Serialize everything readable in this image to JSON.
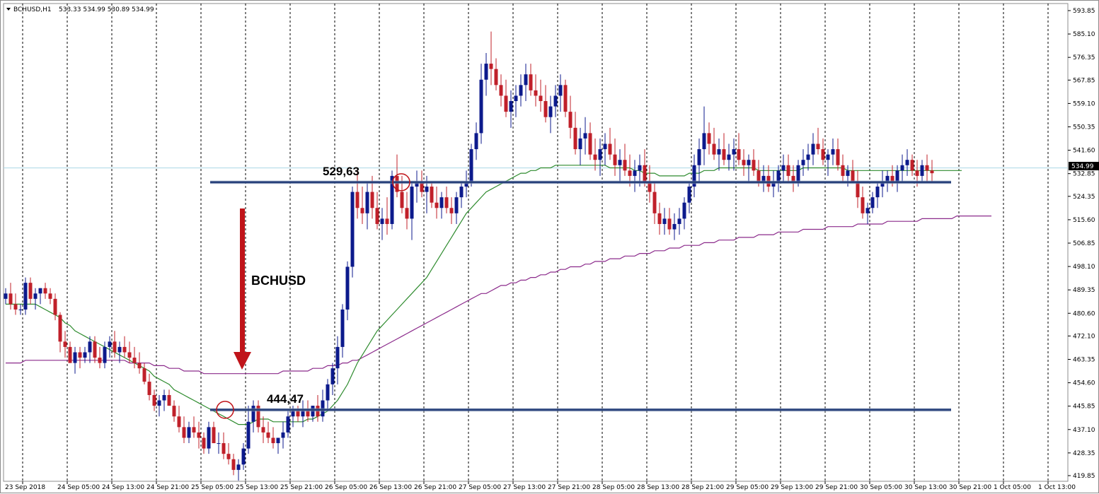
{
  "header": {
    "symbol": "BCHUSD,H1",
    "ohlc": "533.33 534.99 530.89 534.99"
  },
  "colors": {
    "bull": "#0c1a8c",
    "bear": "#c0202a",
    "ma_fast": "#2e8b2e",
    "ma_slow": "#8b2a8b",
    "level_line": "#27407a",
    "arrow": "#c0141a",
    "grid": "#000000",
    "price_tag_bg": "#000000"
  },
  "current_price_tag": "534.99",
  "chart_data": {
    "type": "candlestick",
    "title": "BCHUSD,H1",
    "ylim": [
      419.85,
      596.0
    ],
    "y_ticks": [
      "593.85",
      "585.10",
      "576.35",
      "567.85",
      "559.10",
      "550.35",
      "541.60",
      "532.85",
      "524.35",
      "515.60",
      "506.85",
      "498.10",
      "489.35",
      "480.60",
      "472.10",
      "463.35",
      "454.60",
      "445.85",
      "437.10",
      "428.35",
      "419.85"
    ],
    "x_tick_labels": [
      "23 Sep 2018",
      "24 Sep 05:00",
      "24 Sep 13:00",
      "24 Sep 21:00",
      "25 Sep 05:00",
      "25 Sep 13:00",
      "25 Sep 21:00",
      "26 Sep 05:00",
      "26 Sep 13:00",
      "26 Sep 21:00",
      "27 Sep 05:00",
      "27 Sep 13:00",
      "27 Sep 21:00",
      "28 Sep 05:00",
      "28 Sep 13:00",
      "28 Sep 21:00",
      "29 Sep 05:00",
      "29 Sep 13:00",
      "29 Sep 21:00",
      "30 Sep 05:00",
      "30 Sep 13:00",
      "30 Sep 21:00",
      "1 Oct 05:00",
      "1 Oct 13:00"
    ],
    "x_tick_bar_index": [
      0,
      9,
      18,
      27,
      36,
      45,
      54,
      63,
      72,
      81,
      90,
      99,
      108,
      117,
      126,
      135,
      144,
      153,
      162,
      171,
      180,
      189,
      198,
      207
    ],
    "ohlc": [
      [
        486,
        490,
        484,
        488
      ],
      [
        488,
        492,
        482,
        484
      ],
      [
        484,
        488,
        480,
        482
      ],
      [
        482,
        484,
        480,
        482
      ],
      [
        482,
        494,
        480,
        492
      ],
      [
        492,
        494,
        484,
        486
      ],
      [
        486,
        490,
        482,
        488
      ],
      [
        488,
        490,
        484,
        490
      ],
      [
        490,
        492,
        486,
        488
      ],
      [
        488,
        490,
        484,
        486
      ],
      [
        486,
        488,
        478,
        480
      ],
      [
        480,
        481,
        466,
        470
      ],
      [
        470,
        474,
        464,
        468
      ],
      [
        468,
        470,
        462,
        462
      ],
      [
        462,
        468,
        458,
        466
      ],
      [
        466,
        468,
        460,
        464
      ],
      [
        464,
        468,
        462,
        466
      ],
      [
        466,
        472,
        462,
        470
      ],
      [
        470,
        472,
        462,
        464
      ],
      [
        464,
        468,
        460,
        462
      ],
      [
        462,
        470,
        460,
        468
      ],
      [
        468,
        472,
        464,
        470
      ],
      [
        470,
        474,
        464,
        466
      ],
      [
        466,
        470,
        462,
        468
      ],
      [
        468,
        472,
        464,
        466
      ],
      [
        466,
        470,
        462,
        464
      ],
      [
        464,
        468,
        460,
        462
      ],
      [
        462,
        466,
        458,
        460
      ],
      [
        460,
        462,
        454,
        455
      ],
      [
        455,
        458,
        448,
        450
      ],
      [
        450,
        452,
        444,
        446
      ],
      [
        446,
        450,
        442,
        448
      ],
      [
        448,
        452,
        444,
        450
      ],
      [
        450,
        452,
        446,
        446
      ],
      [
        446,
        448,
        440,
        442
      ],
      [
        442,
        446,
        436,
        438
      ],
      [
        438,
        442,
        432,
        434
      ],
      [
        434,
        440,
        432,
        438
      ],
      [
        438,
        442,
        434,
        436
      ],
      [
        436,
        440,
        430,
        434
      ],
      [
        434,
        436,
        428,
        430
      ],
      [
        430,
        440,
        428,
        438
      ],
      [
        438,
        440,
        432,
        432
      ],
      [
        432,
        436,
        428,
        432
      ],
      [
        432,
        436,
        426,
        428
      ],
      [
        428,
        432,
        424,
        426
      ],
      [
        426,
        428,
        420,
        422
      ],
      [
        422,
        426,
        418,
        424
      ],
      [
        424,
        432,
        422,
        430
      ],
      [
        430,
        446,
        428,
        440
      ],
      [
        440,
        448,
        436,
        446
      ],
      [
        446,
        448,
        436,
        438
      ],
      [
        438,
        442,
        432,
        436
      ],
      [
        436,
        440,
        432,
        434
      ],
      [
        434,
        438,
        430,
        432
      ],
      [
        432,
        434,
        428,
        434
      ],
      [
        434,
        440,
        430,
        436
      ],
      [
        436,
        444,
        434,
        442
      ],
      [
        442,
        446,
        438,
        444
      ],
      [
        444,
        446,
        440,
        442
      ],
      [
        442,
        448,
        438,
        444
      ],
      [
        444,
        448,
        440,
        442
      ],
      [
        442,
        446,
        440,
        446
      ],
      [
        446,
        450,
        440,
        442
      ],
      [
        442,
        452,
        440,
        448
      ],
      [
        448,
        456,
        444,
        454
      ],
      [
        454,
        462,
        450,
        460
      ],
      [
        460,
        472,
        454,
        468
      ],
      [
        468,
        484,
        464,
        482
      ],
      [
        482,
        500,
        478,
        498
      ],
      [
        498,
        528,
        494,
        526
      ],
      [
        526,
        534,
        516,
        520
      ],
      [
        520,
        528,
        514,
        518
      ],
      [
        518,
        530,
        512,
        526
      ],
      [
        526,
        532,
        516,
        520
      ],
      [
        520,
        526,
        512,
        514
      ],
      [
        514,
        520,
        508,
        516
      ],
      [
        516,
        524,
        510,
        514
      ],
      [
        514,
        534,
        512,
        532
      ],
      [
        532,
        540,
        524,
        526
      ],
      [
        526,
        532,
        518,
        520
      ],
      [
        520,
        526,
        512,
        516
      ],
      [
        516,
        530,
        508,
        528
      ],
      [
        528,
        534,
        522,
        530
      ],
      [
        530,
        534,
        524,
        526
      ],
      [
        526,
        532,
        518,
        528
      ],
      [
        528,
        530,
        520,
        522
      ],
      [
        522,
        528,
        516,
        520
      ],
      [
        520,
        526,
        516,
        524
      ],
      [
        524,
        528,
        518,
        520
      ],
      [
        520,
        524,
        514,
        518
      ],
      [
        518,
        526,
        514,
        524
      ],
      [
        524,
        530,
        520,
        528
      ],
      [
        528,
        534,
        524,
        530
      ],
      [
        530,
        544,
        528,
        542
      ],
      [
        542,
        552,
        538,
        548
      ],
      [
        548,
        574,
        544,
        568
      ],
      [
        568,
        578,
        562,
        574
      ],
      [
        574,
        586,
        566,
        572
      ],
      [
        572,
        576,
        564,
        566
      ],
      [
        566,
        570,
        558,
        562
      ],
      [
        562,
        568,
        554,
        556
      ],
      [
        556,
        564,
        550,
        560
      ],
      [
        560,
        566,
        554,
        562
      ],
      [
        562,
        570,
        558,
        566
      ],
      [
        566,
        574,
        560,
        570
      ],
      [
        570,
        574,
        562,
        564
      ],
      [
        564,
        570,
        558,
        562
      ],
      [
        562,
        568,
        556,
        560
      ],
      [
        560,
        566,
        552,
        554
      ],
      [
        554,
        562,
        548,
        558
      ],
      [
        558,
        566,
        554,
        562
      ],
      [
        562,
        570,
        556,
        566
      ],
      [
        566,
        568,
        554,
        556
      ],
      [
        556,
        562,
        546,
        550
      ],
      [
        550,
        556,
        540,
        542
      ],
      [
        542,
        550,
        536,
        546
      ],
      [
        546,
        554,
        540,
        548
      ],
      [
        548,
        552,
        538,
        540
      ],
      [
        540,
        546,
        534,
        538
      ],
      [
        538,
        546,
        532,
        542
      ],
      [
        542,
        548,
        536,
        544
      ],
      [
        544,
        550,
        538,
        540
      ],
      [
        540,
        546,
        532,
        536
      ],
      [
        536,
        542,
        530,
        538
      ],
      [
        538,
        544,
        532,
        534
      ],
      [
        534,
        540,
        528,
        532
      ],
      [
        532,
        538,
        526,
        534
      ],
      [
        534,
        540,
        528,
        536
      ],
      [
        536,
        542,
        528,
        530
      ],
      [
        530,
        536,
        522,
        526
      ],
      [
        526,
        530,
        514,
        518
      ],
      [
        518,
        522,
        510,
        514
      ],
      [
        514,
        520,
        510,
        516
      ],
      [
        516,
        520,
        510,
        512
      ],
      [
        512,
        518,
        508,
        514
      ],
      [
        514,
        520,
        510,
        516
      ],
      [
        516,
        524,
        512,
        522
      ],
      [
        522,
        530,
        518,
        528
      ],
      [
        528,
        540,
        524,
        536
      ],
      [
        536,
        546,
        530,
        542
      ],
      [
        542,
        558,
        536,
        548
      ],
      [
        548,
        552,
        540,
        544
      ],
      [
        544,
        550,
        538,
        540
      ],
      [
        540,
        546,
        534,
        542
      ],
      [
        542,
        548,
        536,
        538
      ],
      [
        538,
        544,
        534,
        540
      ],
      [
        540,
        546,
        534,
        542
      ],
      [
        542,
        548,
        536,
        538
      ],
      [
        538,
        542,
        532,
        536
      ],
      [
        536,
        540,
        530,
        538
      ],
      [
        538,
        542,
        532,
        534
      ],
      [
        534,
        538,
        528,
        530
      ],
      [
        530,
        536,
        526,
        532
      ],
      [
        532,
        536,
        526,
        528
      ],
      [
        528,
        534,
        524,
        530
      ],
      [
        530,
        536,
        526,
        534
      ],
      [
        534,
        540,
        530,
        536
      ],
      [
        536,
        540,
        530,
        532
      ],
      [
        532,
        536,
        526,
        530
      ],
      [
        530,
        538,
        528,
        536
      ],
      [
        536,
        542,
        532,
        538
      ],
      [
        538,
        544,
        534,
        540
      ],
      [
        540,
        548,
        536,
        544
      ],
      [
        544,
        550,
        540,
        542
      ],
      [
        542,
        546,
        536,
        538
      ],
      [
        538,
        542,
        532,
        540
      ],
      [
        540,
        546,
        536,
        542
      ],
      [
        542,
        546,
        534,
        536
      ],
      [
        536,
        540,
        530,
        532
      ],
      [
        532,
        536,
        528,
        534
      ],
      [
        534,
        538,
        530,
        530
      ],
      [
        530,
        534,
        520,
        524
      ],
      [
        524,
        528,
        516,
        518
      ],
      [
        518,
        522,
        514,
        520
      ],
      [
        520,
        526,
        518,
        524
      ],
      [
        524,
        530,
        520,
        528
      ],
      [
        528,
        534,
        524,
        530
      ],
      [
        530,
        534,
        526,
        532
      ],
      [
        532,
        536,
        528,
        530
      ],
      [
        530,
        536,
        526,
        534
      ],
      [
        534,
        540,
        530,
        536
      ],
      [
        536,
        542,
        532,
        538
      ],
      [
        538,
        540,
        532,
        534
      ],
      [
        534,
        538,
        528,
        532
      ],
      [
        532,
        538,
        530,
        536
      ],
      [
        536,
        540,
        530,
        534
      ],
      [
        534,
        538,
        530,
        533
      ]
    ],
    "ma_fast": [
      484,
      484,
      484,
      484,
      484,
      484,
      484,
      483,
      482,
      481,
      480,
      479,
      477,
      476,
      474,
      473,
      472,
      471,
      470,
      469,
      468,
      467,
      466,
      465,
      464,
      463,
      462,
      461,
      460,
      459,
      457,
      456,
      455,
      454,
      452,
      451,
      450,
      449,
      448,
      447,
      446,
      445,
      444,
      443,
      442,
      441,
      440,
      439,
      439,
      439,
      440,
      441,
      441,
      441,
      440,
      440,
      440,
      440,
      440,
      440,
      440,
      441,
      441,
      442,
      443,
      444,
      446,
      448,
      451,
      454,
      458,
      462,
      465,
      468,
      471,
      474,
      476,
      478,
      480,
      482,
      484,
      486,
      488,
      490,
      492,
      494,
      497,
      500,
      503,
      506,
      509,
      512,
      515,
      518,
      520,
      522,
      524,
      526,
      527,
      528,
      529,
      530,
      531,
      532,
      533,
      533,
      534,
      534,
      535,
      535,
      535,
      536,
      536,
      536,
      536,
      536,
      536,
      536,
      536,
      536,
      536,
      536,
      535,
      535,
      535,
      535,
      535,
      534,
      534,
      533,
      533,
      533,
      532,
      532,
      532,
      532,
      532,
      532,
      533,
      533,
      533,
      534,
      534,
      534,
      535,
      535,
      535,
      535,
      535,
      535,
      535,
      535,
      534,
      534,
      534,
      534,
      534,
      534,
      534,
      534,
      534,
      535,
      535,
      535,
      535,
      535,
      535,
      535,
      535,
      535,
      534,
      534,
      534,
      534,
      534,
      534,
      534,
      534,
      534,
      534,
      534,
      534,
      534,
      534,
      534,
      534,
      534,
      534,
      534,
      534,
      534,
      534,
      534,
      534
    ],
    "ma_slow": [
      462,
      462,
      462,
      462,
      463,
      463,
      463,
      463,
      463,
      463,
      463,
      463,
      463,
      463,
      463,
      463,
      463,
      463,
      463,
      463,
      463,
      463,
      463,
      463,
      463,
      462,
      462,
      462,
      462,
      462,
      461,
      461,
      461,
      460,
      460,
      460,
      459,
      459,
      459,
      459,
      458,
      458,
      458,
      458,
      458,
      458,
      458,
      458,
      458,
      458,
      458,
      458,
      458,
      458,
      458,
      458,
      459,
      459,
      459,
      459,
      459,
      459,
      460,
      460,
      460,
      461,
      461,
      461,
      462,
      462,
      463,
      463,
      464,
      465,
      466,
      467,
      468,
      469,
      470,
      471,
      472,
      473,
      474,
      475,
      476,
      477,
      478,
      479,
      480,
      481,
      482,
      483,
      484,
      485,
      486,
      487,
      488,
      488,
      489,
      490,
      491,
      491,
      492,
      492,
      493,
      493,
      494,
      494,
      495,
      495,
      496,
      496,
      497,
      497,
      498,
      498,
      498,
      499,
      499,
      500,
      500,
      500,
      501,
      501,
      501,
      502,
      502,
      502,
      503,
      503,
      503,
      504,
      504,
      504,
      505,
      505,
      505,
      506,
      506,
      506,
      506,
      507,
      507,
      507,
      508,
      508,
      508,
      508,
      509,
      509,
      509,
      509,
      510,
      510,
      510,
      510,
      511,
      511,
      511,
      511,
      511,
      512,
      512,
      512,
      512,
      512,
      513,
      513,
      513,
      513,
      513,
      513,
      514,
      514,
      514,
      514,
      514,
      514,
      515,
      515,
      515,
      515,
      515,
      515,
      515,
      516,
      516,
      516,
      516,
      516,
      516,
      516,
      517,
      517,
      517,
      517,
      517,
      517,
      517,
      517
    ],
    "levels": [
      {
        "label": "529,63",
        "value": 529.63,
        "from_bar": 44,
        "to_bar": 207
      },
      {
        "label": "444,47",
        "value": 444.47,
        "from_bar": 44,
        "to_bar": 207
      }
    ],
    "annotations": {
      "title": "BCHUSD",
      "arrow": "down"
    }
  }
}
